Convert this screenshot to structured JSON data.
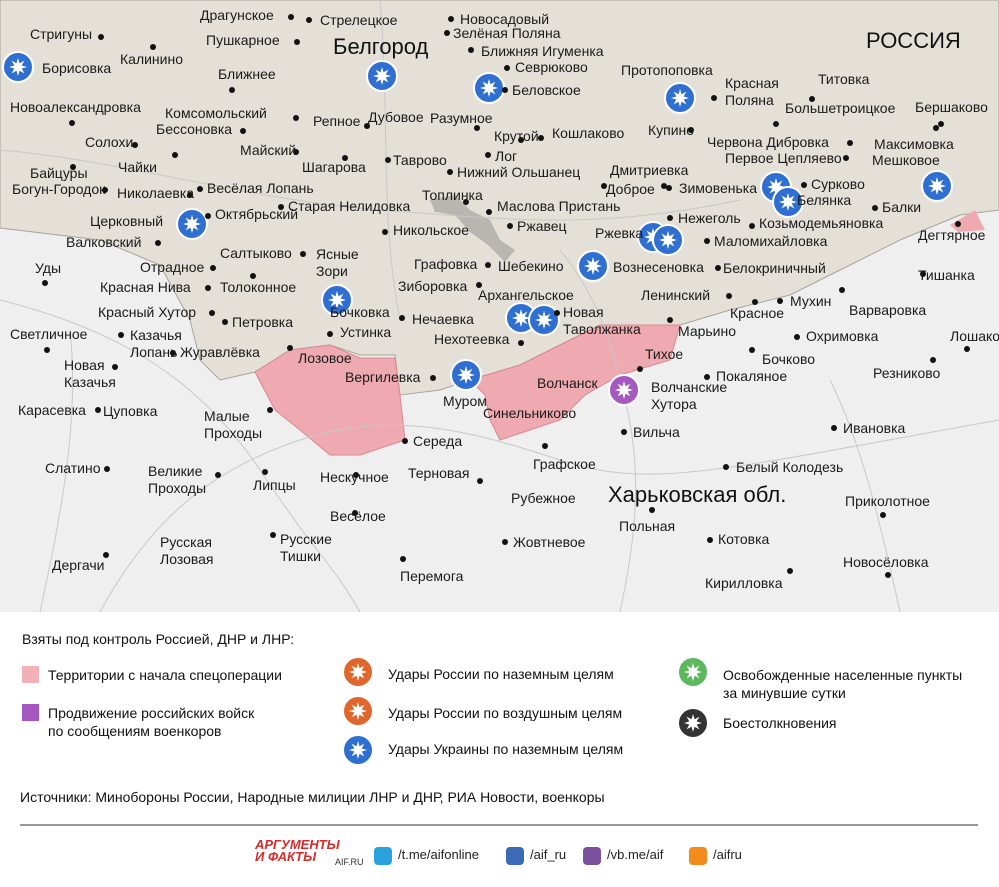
{
  "map": {
    "country": "РОССИЯ",
    "city": "Белгород",
    "oblast": "Харьковская обл.",
    "places": [
      "Драгунское",
      "Стрелецкое",
      "Новосадовый",
      "Зелёная Поляна",
      "Стригуны",
      "Пушкарное",
      "Ближняя Игуменка",
      "Калинино",
      "Борисовка",
      "Севрюково",
      "Протопоповка",
      "Ближнее",
      "Красная\nПоляна",
      "Титовка",
      "Новоалександровка",
      "Комсомольский",
      "Бессоновка",
      "Беловское",
      "Большетроицкое",
      "Бершаково",
      "Репное",
      "Дубовое",
      "Разумное",
      "Кошлаково",
      "Купино",
      "Червона Дибровка",
      "Максимовка",
      "Солохи",
      "Майский",
      "Крутой",
      "Первое Цепляево",
      "Мешковое",
      "Чайки",
      "Шагарова",
      "Таврово",
      "Лог",
      "Байцуры",
      "Нижний Ольшанец",
      "Дмитриевка",
      "Богун-Городок",
      "Николаевка",
      "Весёлая Лопань",
      "Топлинка",
      "Доброе",
      "Зимовенька",
      "Сурково",
      "Белянка",
      "Балки",
      "Старая Нелидовка",
      "Маслова Пристань",
      "Церковный",
      "Октябрьский",
      "Нежеголь",
      "Козьмодемьяновка",
      "Никольское",
      "Ржавец",
      "Ржевка",
      "Дегтярное",
      "Валковский",
      "Маломихайловка",
      "Салтыково",
      "Ясные\nЗори",
      "Уды",
      "Отрадное",
      "Графовка",
      "Шебекино",
      "Вознесеновка",
      "Белокриничный",
      "Тишанка",
      "Красная Нива",
      "Толоконное",
      "Зиборовка",
      "Архангельское",
      "Новая\nТаволжанка",
      "Ленинский",
      "Мухин",
      "Красный Хутор",
      "Бочковка",
      "Нечаевка",
      "Красное",
      "Варваровка",
      "Петровка",
      "Устинка",
      "Марьино",
      "Охримовка",
      "Лошаково",
      "Светличное",
      "Казачья\nЛопань",
      "Нехотеевка",
      "Журавлёвка",
      "Лозовое",
      "Тихое",
      "Бочково",
      "Новая\nКазачья",
      "Вергилевка",
      "Волчанск",
      "Покаляное",
      "Резниково",
      "Муром",
      "Волчанские\nХутора",
      "Карасевка",
      "Цуповка",
      "Малые\nПроходы",
      "Синельниково",
      "Вильча",
      "Ивановка",
      "Середа",
      "Графское",
      "Белый Колодезь",
      "Слатино",
      "Великие\nПроходы",
      "Нескучное",
      "Терновая",
      "Липцы",
      "Рубежное",
      "Приколотное",
      "Весёлое",
      "Польная",
      "Русская\nЛозовая",
      "Русские\nТишки",
      "Котовка",
      "Жовтневое",
      "Новосёловка",
      "Дергачи",
      "Перемога",
      "Кирилловка"
    ],
    "legend": {
      "title": "Взяты под контроль Россией, ДНР и ЛНР:",
      "items": [
        "Территории с начала спецоперации",
        "Продвижение российских войск\nпо сообщениям военкоров",
        "Удары России по наземным целям",
        "Удары России по воздушным целям",
        "Удары Украины по наземным целям",
        "Освобожденные населенные пункты\nза минувшие сутки",
        "Боестолкновения"
      ]
    },
    "sources": "Источники: Минобороны России, Народные милиции ЛНР и ДНР, РИА Новости, военкоры",
    "footer": {
      "logo_top": "АРГУМЕНТЫ",
      "logo_bottom": "И ФАКТЫ",
      "logo_site": "AIF.RU",
      "links": [
        "/t.me/aifonline",
        "/aif_ru",
        "/vb.me/aif",
        "/aifru"
      ]
    }
  }
}
